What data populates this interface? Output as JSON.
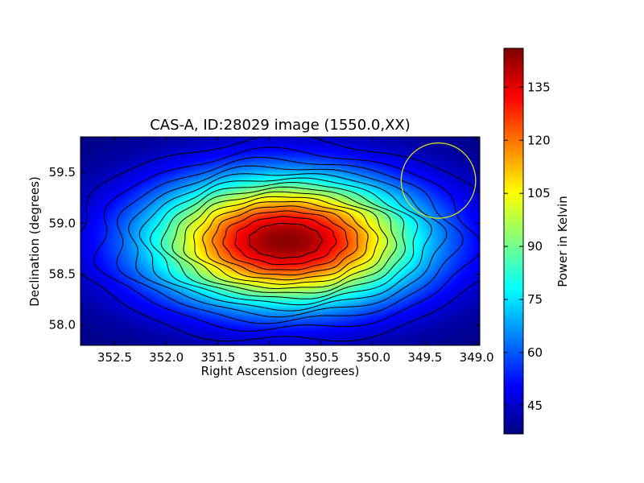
{
  "chart_data": {
    "type": "heatmap",
    "title": "CAS-A, ID:28029 image (1550.0,XX)",
    "xlabel": "Right Ascension (degrees)",
    "ylabel": "Declination (degrees)",
    "xlim": [
      352.83,
      348.97
    ],
    "ylim": [
      57.8,
      59.85
    ],
    "x_ticks": [
      352.5,
      352.0,
      351.5,
      351.0,
      350.5,
      350.0,
      349.5,
      349.0
    ],
    "x_tick_labels": [
      "352.5",
      "352.0",
      "351.5",
      "351.0",
      "350.5",
      "350.0",
      "349.5",
      "349.0"
    ],
    "y_ticks": [
      58.0,
      58.5,
      59.0,
      59.5
    ],
    "y_tick_labels": [
      "58.0",
      "58.5",
      "59.0",
      "59.5"
    ],
    "colormap": "jet",
    "source_peak": {
      "ra": 350.85,
      "dec": 58.83,
      "value": 145
    },
    "background_value": 37,
    "contour_count": 15,
    "beam_circle": {
      "ra": 349.37,
      "dec": 59.42,
      "radius_ra": 0.36,
      "radius_dec": 0.37,
      "color": "#d8d820"
    },
    "colorbar": {
      "label": "Power in Kelvin",
      "min": 37,
      "max": 146,
      "ticks": [
        45,
        60,
        75,
        90,
        105,
        120,
        135
      ],
      "tick_labels": [
        "45",
        "60",
        "75",
        "90",
        "105",
        "120",
        "135"
      ]
    }
  }
}
